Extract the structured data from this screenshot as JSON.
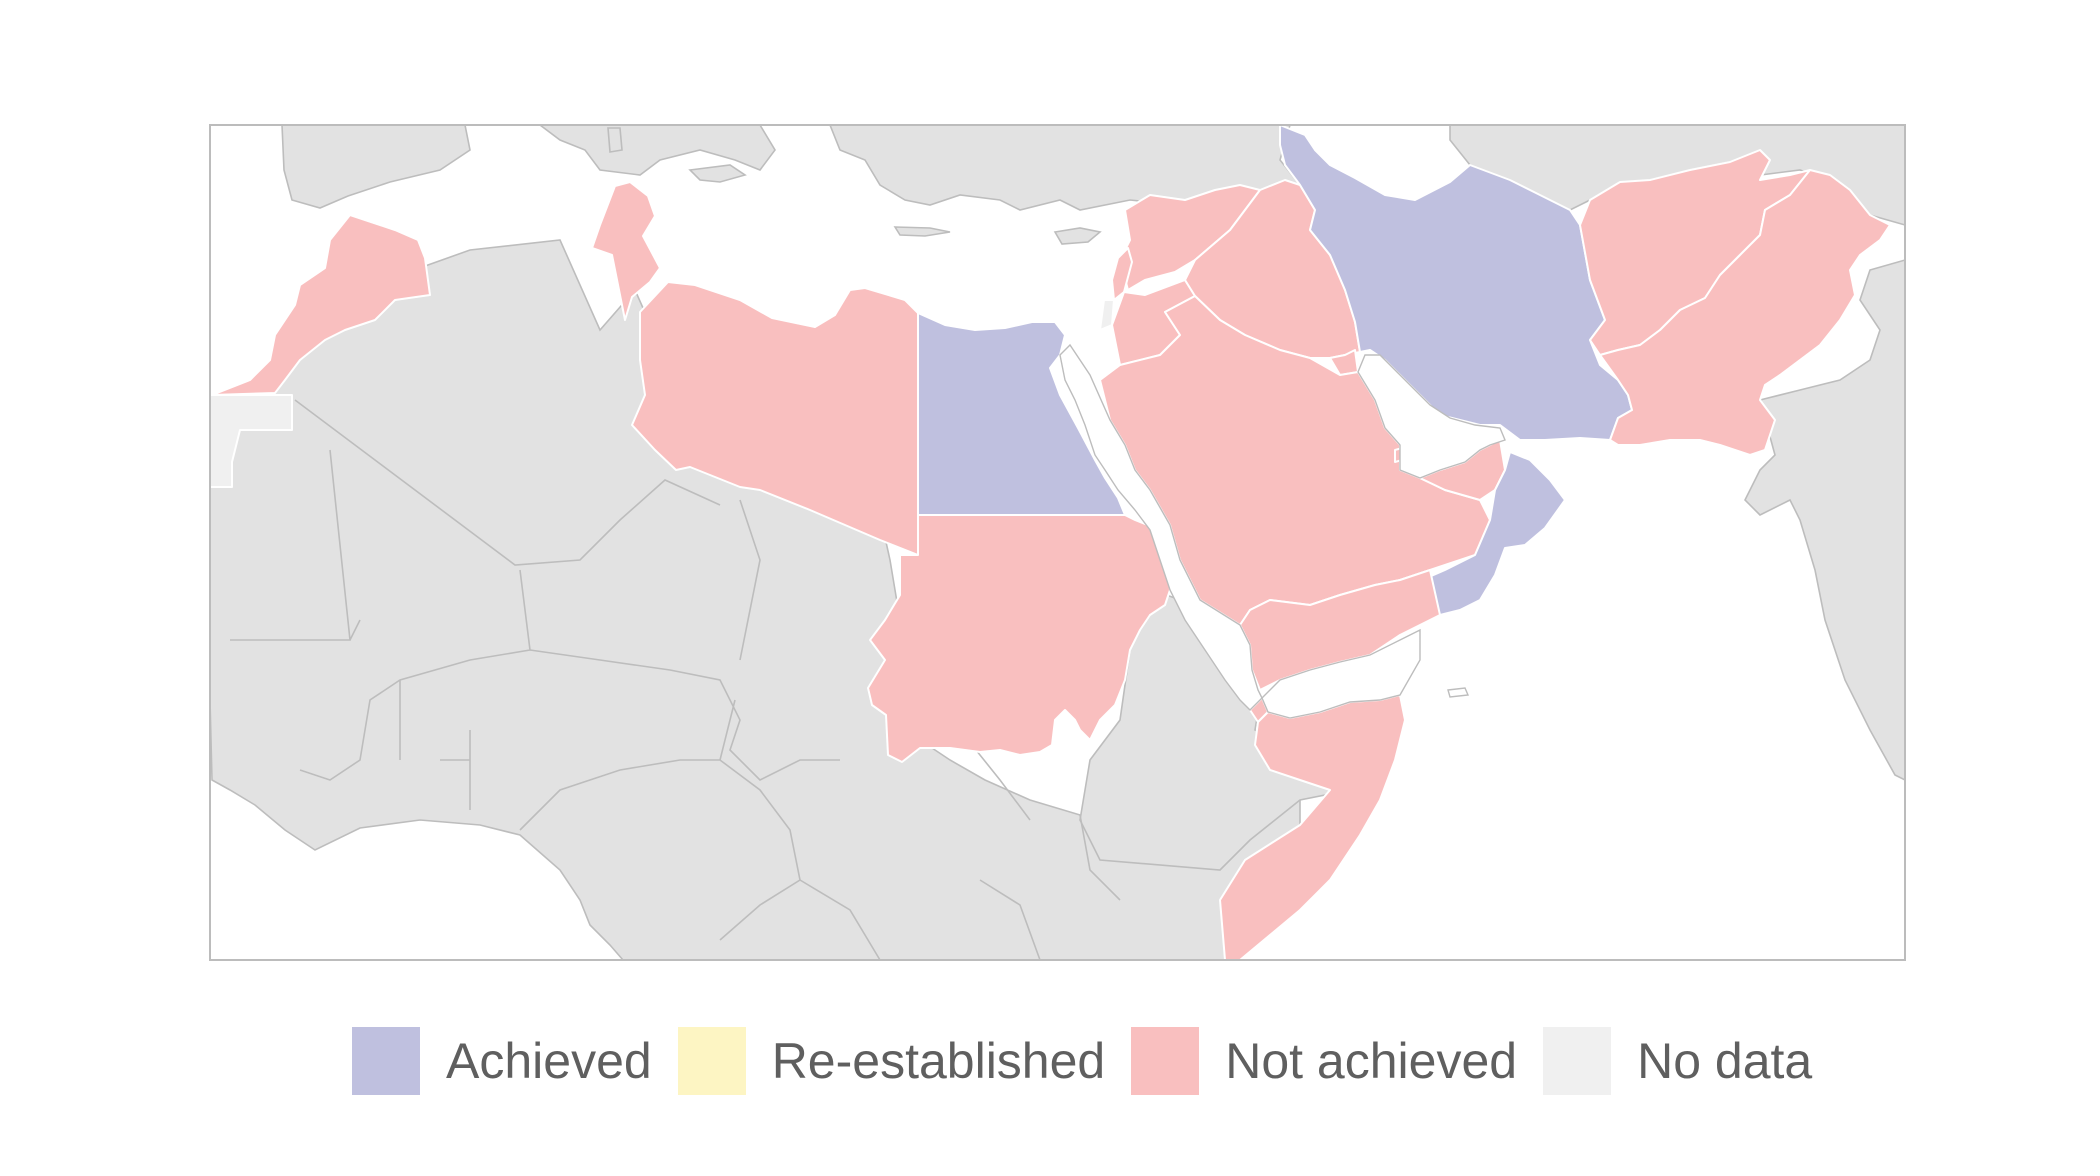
{
  "map": {
    "categories": [
      {
        "key": "achieved",
        "label": "Achieved",
        "color": "#bfc0df"
      },
      {
        "key": "reestablished",
        "label": "Re-established",
        "color": "#fdf5c3"
      },
      {
        "key": "not_achieved",
        "label": "Not achieved",
        "color": "#f9bfbf"
      },
      {
        "key": "no_data",
        "label": "No data",
        "color": "#f0f0f0"
      }
    ],
    "other_land_color": "#e2e2e2",
    "countries": [
      {
        "name": "Morocco",
        "status": "not_achieved"
      },
      {
        "name": "Western Sahara",
        "status": "no_data"
      },
      {
        "name": "Tunisia",
        "status": "not_achieved"
      },
      {
        "name": "Libya",
        "status": "not_achieved"
      },
      {
        "name": "Egypt",
        "status": "achieved"
      },
      {
        "name": "Sudan",
        "status": "not_achieved"
      },
      {
        "name": "Syria",
        "status": "not_achieved"
      },
      {
        "name": "Lebanon",
        "status": "not_achieved"
      },
      {
        "name": "Palestine",
        "status": "no_data"
      },
      {
        "name": "Jordan",
        "status": "not_achieved"
      },
      {
        "name": "Iraq",
        "status": "not_achieved"
      },
      {
        "name": "Kuwait",
        "status": "not_achieved"
      },
      {
        "name": "Saudi Arabia",
        "status": "not_achieved"
      },
      {
        "name": "Bahrain",
        "status": "not_achieved"
      },
      {
        "name": "Qatar",
        "status": "not_achieved"
      },
      {
        "name": "United Arab Emirates",
        "status": "not_achieved"
      },
      {
        "name": "Oman",
        "status": "achieved"
      },
      {
        "name": "Yemen",
        "status": "not_achieved"
      },
      {
        "name": "Iran",
        "status": "achieved"
      },
      {
        "name": "Afghanistan",
        "status": "not_achieved"
      },
      {
        "name": "Pakistan",
        "status": "not_achieved"
      },
      {
        "name": "Djibouti",
        "status": "not_achieved"
      },
      {
        "name": "Somalia",
        "status": "not_achieved"
      }
    ]
  }
}
